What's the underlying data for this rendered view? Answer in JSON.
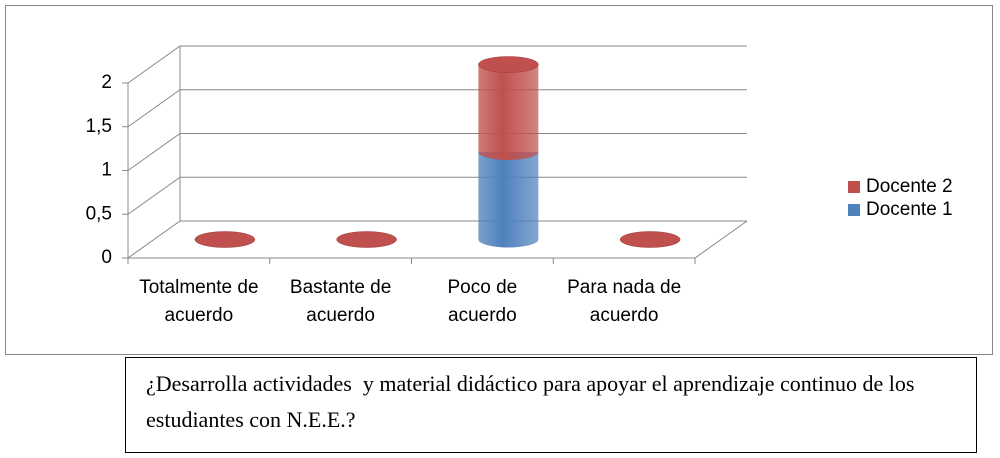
{
  "chart_data": {
    "type": "bar3d-stacked-cylinder",
    "categories": [
      "Totalmente de acuerdo",
      "Bastante de acuerdo",
      "Poco de acuerdo",
      "Para nada de acuerdo"
    ],
    "series": [
      {
        "name": "Docente 1",
        "color": "#4f81bd",
        "values": [
          0,
          0,
          1,
          0
        ]
      },
      {
        "name": "Docente 2",
        "color": "#c0504d",
        "values": [
          0,
          0,
          1,
          0
        ]
      }
    ],
    "ylim": [
      0,
      2
    ],
    "yticks": [
      0,
      {
        "value": 0.5,
        "label": "0,5"
      },
      1,
      {
        "value": 1.5,
        "label": "1,5"
      },
      2
    ],
    "grid": true,
    "legend": "right"
  },
  "caption": "¿Desarrolla actividades  y material didáctico para apoyar el aprendizaje continuo de los estudiantes con N.E.E.?"
}
